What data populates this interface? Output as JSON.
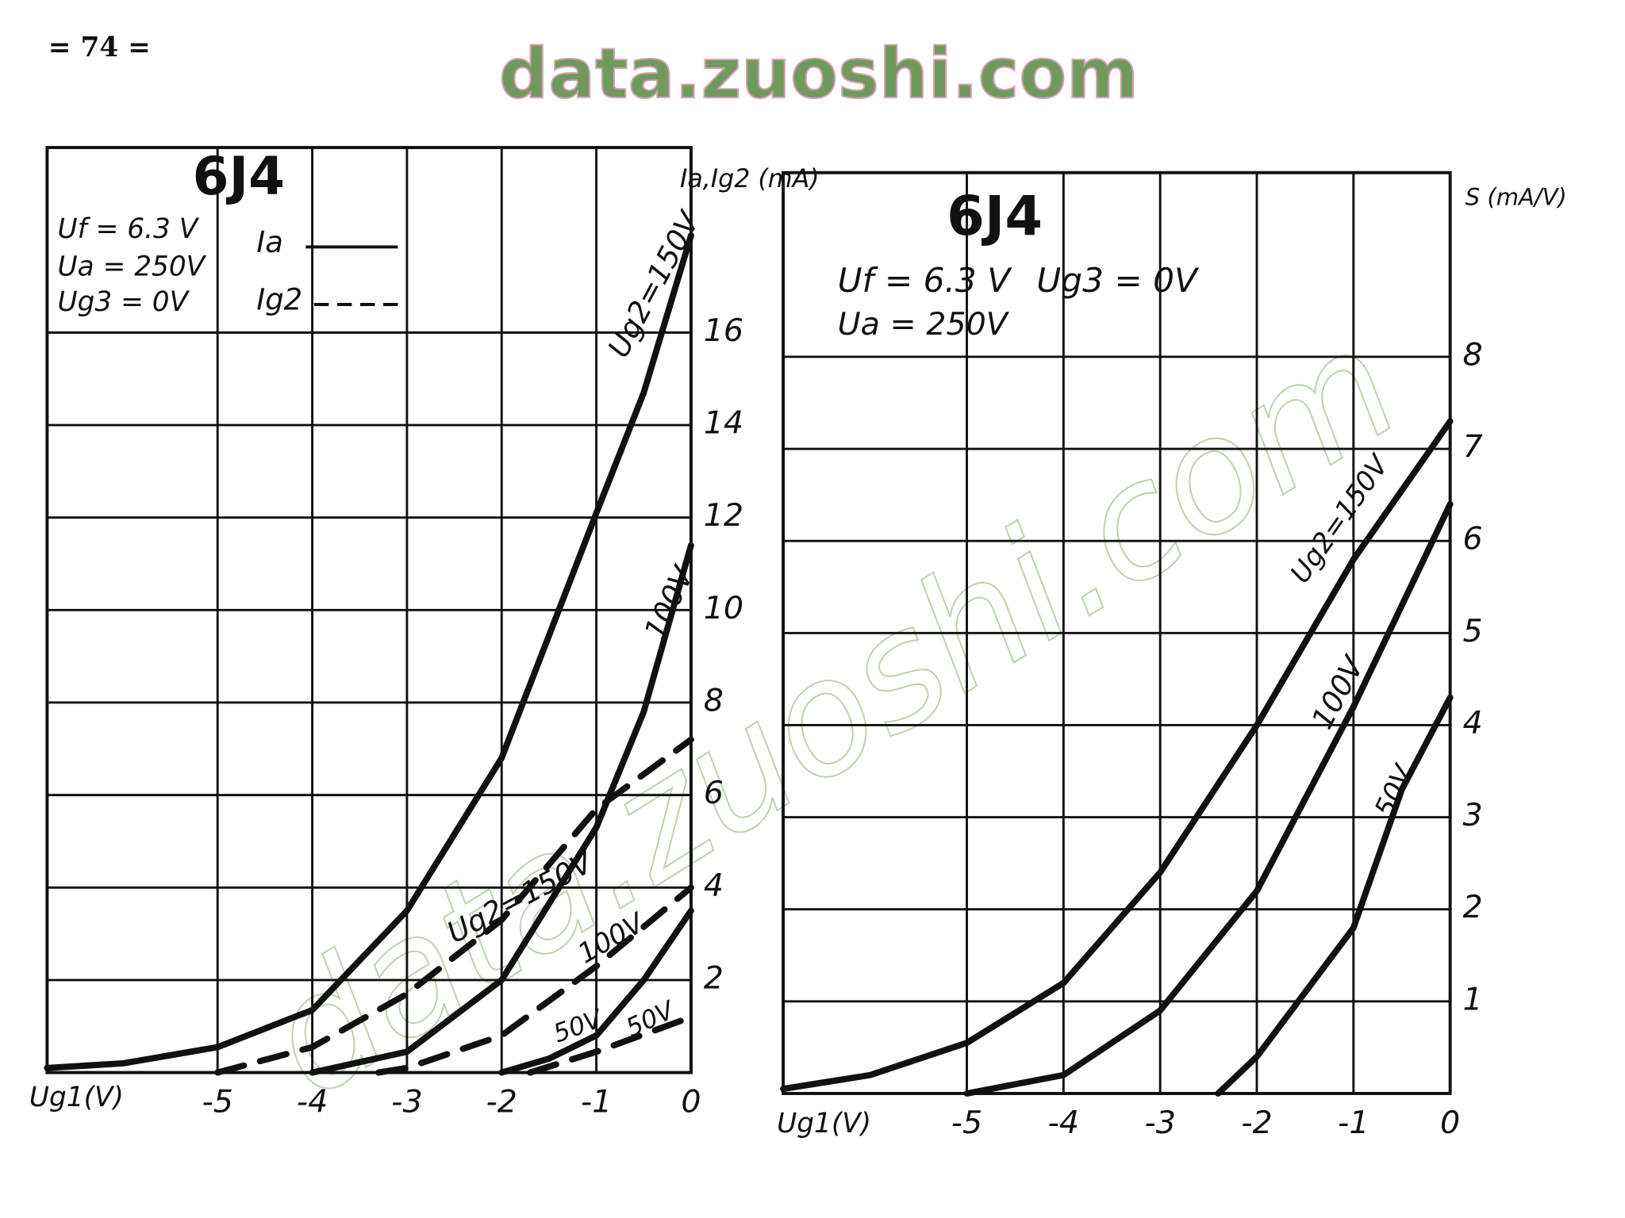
{
  "header": {
    "page_number": "= 74 =",
    "watermark": "data.zuoshi.com"
  },
  "chart_data": [
    {
      "type": "line",
      "title": "6J4",
      "conditions": [
        "Uf = 6.3 V",
        "Ua = 250V",
        "Ug3 = 0V"
      ],
      "legend": [
        {
          "name": "Ia",
          "dashed": false
        },
        {
          "name": "Ig2",
          "dashed": true
        }
      ],
      "x_label": "Ug1(V)",
      "y_label": "Ia,Ig2 (mA)",
      "xlim": [
        -6.8,
        0
      ],
      "xticks": [
        -5,
        -4,
        -3,
        -2,
        -1,
        0
      ],
      "ylim": [
        0,
        20
      ],
      "yticks": [
        2,
        4,
        6,
        8,
        10,
        12,
        14,
        16
      ],
      "grid": true,
      "color": "#111111",
      "series": [
        {
          "name": "Ug2=150V",
          "dashed": false,
          "x": [
            -6.8,
            -6,
            -5,
            -4,
            -3,
            -2,
            -1,
            -0.5,
            0
          ],
          "values": [
            0.1,
            0.2,
            0.55,
            1.35,
            3.5,
            6.8,
            12.1,
            14.7,
            18.1
          ]
        },
        {
          "name": "100V",
          "dashed": false,
          "x": [
            -4,
            -3,
            -2,
            -1,
            -0.5,
            0
          ],
          "values": [
            0,
            0.45,
            2.0,
            5.3,
            7.8,
            11.4
          ]
        },
        {
          "name": "50V",
          "dashed": false,
          "x": [
            -2,
            -1.5,
            -1,
            -0.5,
            0
          ],
          "values": [
            0,
            0.3,
            0.8,
            2.0,
            3.5
          ]
        },
        {
          "name": "Ug2=150V",
          "dashed": true,
          "x": [
            -5,
            -4,
            -3,
            -2,
            -1,
            0
          ],
          "values": [
            0,
            0.55,
            1.7,
            3.3,
            5.7,
            7.2
          ]
        },
        {
          "name": "100V",
          "dashed": true,
          "x": [
            -3.3,
            -3,
            -2,
            -1,
            0
          ],
          "values": [
            0,
            0.1,
            0.8,
            2.3,
            4.0
          ]
        },
        {
          "name": "50V",
          "dashed": true,
          "x": [
            -1.7,
            -1,
            0
          ],
          "values": [
            0,
            0.45,
            1.2
          ]
        }
      ]
    },
    {
      "type": "line",
      "title": "6J4",
      "conditions": [
        "Uf = 6.3 V",
        "Ug3 = 0V",
        "Ua = 250V"
      ],
      "x_label": "Ug1(V)",
      "y_label": "S (mA/V)",
      "xlim": [
        -6.9,
        0
      ],
      "xticks": [
        -5,
        -4,
        -3,
        -2,
        -1,
        0
      ],
      "ylim": [
        0,
        10
      ],
      "yticks": [
        1,
        2,
        3,
        4,
        5,
        6,
        7,
        8
      ],
      "grid": true,
      "color": "#111111",
      "series": [
        {
          "name": "Ug2=150V",
          "x": [
            -6.9,
            -6,
            -5,
            -4,
            -3,
            -2,
            -1,
            0
          ],
          "values": [
            0.05,
            0.2,
            0.55,
            1.2,
            2.4,
            4.0,
            5.8,
            7.3
          ]
        },
        {
          "name": "100V",
          "x": [
            -5,
            -4,
            -3,
            -2,
            -1,
            0
          ],
          "values": [
            0,
            0.2,
            0.9,
            2.2,
            4.2,
            6.4
          ]
        },
        {
          "name": "50V",
          "x": [
            -2.4,
            -2,
            -1,
            -0.5,
            0
          ],
          "values": [
            0,
            0.4,
            1.8,
            3.3,
            4.3
          ]
        }
      ]
    }
  ]
}
